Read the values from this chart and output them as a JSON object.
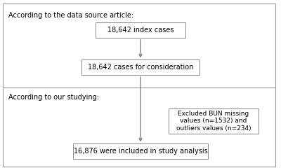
{
  "bg_color": "#ffffff",
  "border_color": "#999999",
  "box_color": "#ffffff",
  "box_edge_color": "#888888",
  "text_color": "#000000",
  "section1_label": "According to the data source article:",
  "section2_label": "According to our studying:",
  "box1_text": "18,642 index cases",
  "box2_text": "18,642 cases for consideration",
  "box3_text": "Excluded BUN missing\nvalues (n=1532) and\noutliers values (n=234)",
  "box4_text": "16,876 were included in study analysis",
  "section1_yspan": [
    0.52,
    1.0
  ],
  "section2_yspan": [
    0.0,
    0.52
  ],
  "font_size": 7,
  "label_font_size": 7
}
